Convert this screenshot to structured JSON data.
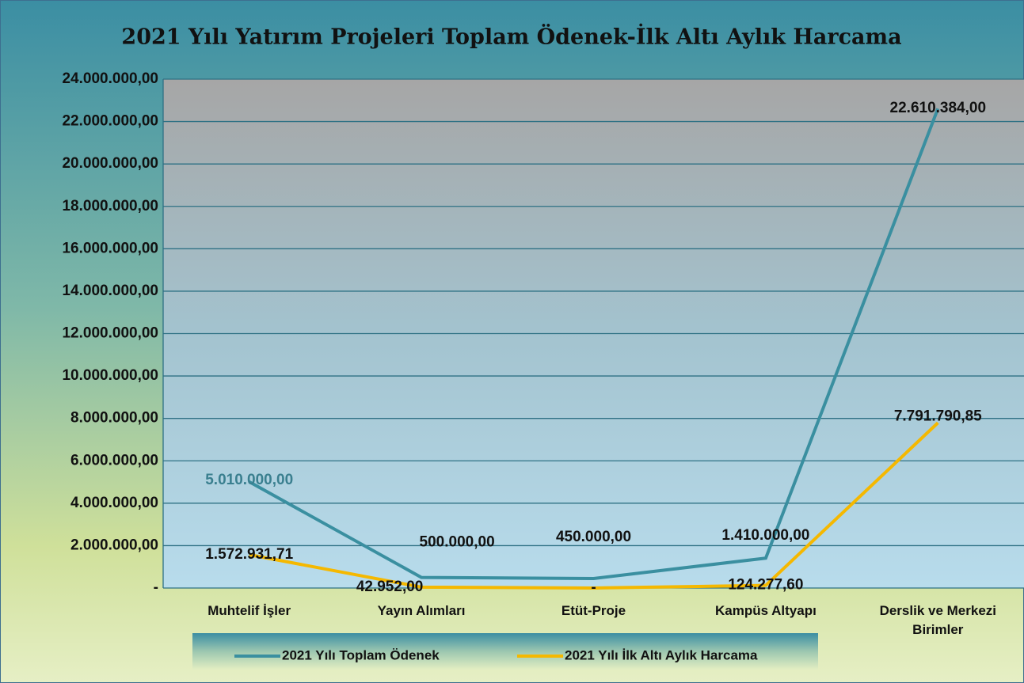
{
  "chart_data": {
    "type": "line",
    "title": "2021 Yılı Yatırım Projeleri Toplam Ödenek-İlk Altı Aylık Harcama",
    "categories": [
      "Muhtelif İşler",
      "Yayın Alımları",
      "Etüt-Proje",
      "Kampüs Altyapı",
      "Derslik ve Merkezi Birimler"
    ],
    "series": [
      {
        "name": "2021 Yılı Toplam Ödenek",
        "color": "#3a8fa0",
        "values": [
          5010000,
          500000,
          450000,
          1410000,
          22610384
        ],
        "value_labels": [
          "5.010.000,00",
          "500.000,00",
          "450.000,00",
          "1.410.000,00",
          "22.610.384,00"
        ]
      },
      {
        "name": "2021 Yılı İlk Altı Aylık Harcama",
        "color": "#f5b800",
        "values": [
          1572931.71,
          42952,
          0,
          124277.6,
          7791790.85
        ],
        "value_labels": [
          "1.572.931,71",
          "42.952,00",
          "-",
          "124.277,60",
          "7.791.790,85"
        ]
      }
    ],
    "ylim": [
      0,
      24000000
    ],
    "yticks": [
      {
        "value": 0,
        "label": "-"
      },
      {
        "value": 2000000,
        "label": "2.000.000,00"
      },
      {
        "value": 4000000,
        "label": "4.000.000,00"
      },
      {
        "value": 6000000,
        "label": "6.000.000,00"
      },
      {
        "value": 8000000,
        "label": "8.000.000,00"
      },
      {
        "value": 10000000,
        "label": "10.000.000,00"
      },
      {
        "value": 12000000,
        "label": "12.000.000,00"
      },
      {
        "value": 14000000,
        "label": "14.000.000,00"
      },
      {
        "value": 16000000,
        "label": "16.000.000,00"
      },
      {
        "value": 18000000,
        "label": "18.000.000,00"
      },
      {
        "value": 20000000,
        "label": "20.000.000,00"
      },
      {
        "value": 22000000,
        "label": "22.000.000,00"
      },
      {
        "value": 24000000,
        "label": "24.000.000,00"
      }
    ],
    "grid": true
  }
}
